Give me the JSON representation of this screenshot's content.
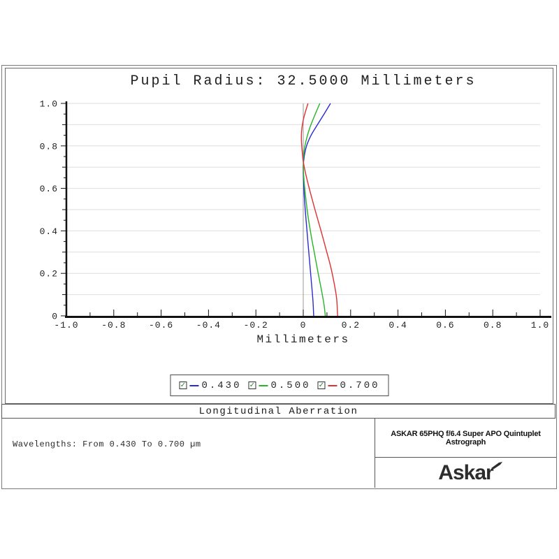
{
  "chart_data": {
    "type": "line",
    "title": "Pupil Radius: 32.5000 Millimeters",
    "xlabel": "Millimeters",
    "ylabel": "",
    "xlim": [
      -1.0,
      1.0
    ],
    "ylim": [
      0,
      1.0
    ],
    "x_tick_values": [
      -1.0,
      -0.8,
      -0.6,
      -0.4,
      -0.2,
      0,
      0.2,
      0.4,
      0.6,
      0.8,
      1.0
    ],
    "x_tick_labels": [
      "-1.0",
      "-0.8",
      "-0.6",
      "-0.4",
      "-0.2",
      "0",
      "0.2",
      "0.4",
      "0.6",
      "0.8",
      "1.0"
    ],
    "y_tick_values": [
      0,
      0.2,
      0.4,
      0.6,
      0.8,
      1.0
    ],
    "y_tick_labels": [
      "0",
      "0.2",
      "0.4",
      "0.6",
      "0.8",
      "1.0"
    ],
    "grid": {
      "horizontal_step": 0.1,
      "vertical_zero_line": true,
      "gridline_color": "#dedede",
      "zero_line_color": "#9a9a9a"
    },
    "legend_position": "bottom-center",
    "series": [
      {
        "name": "0.430",
        "color": "#2a2ad2",
        "checked": true,
        "points": [
          [
            0.115,
            1.0
          ],
          [
            0.088,
            0.95
          ],
          [
            0.06,
            0.9
          ],
          [
            0.033,
            0.85
          ],
          [
            0.014,
            0.8
          ],
          [
            0.004,
            0.75
          ],
          [
            0.0,
            0.7
          ],
          [
            0.001,
            0.64
          ],
          [
            0.004,
            0.57
          ],
          [
            0.009,
            0.49
          ],
          [
            0.015,
            0.41
          ],
          [
            0.021,
            0.33
          ],
          [
            0.028,
            0.24
          ],
          [
            0.035,
            0.15
          ],
          [
            0.041,
            0.07
          ],
          [
            0.044,
            0.0
          ]
        ]
      },
      {
        "name": "0.500",
        "color": "#27b427",
        "checked": true,
        "points": [
          [
            0.07,
            1.0
          ],
          [
            0.047,
            0.94
          ],
          [
            0.026,
            0.88
          ],
          [
            0.011,
            0.82
          ],
          [
            0.003,
            0.77
          ],
          [
            0.0,
            0.71
          ],
          [
            0.003,
            0.64
          ],
          [
            0.01,
            0.56
          ],
          [
            0.02,
            0.47
          ],
          [
            0.033,
            0.38
          ],
          [
            0.048,
            0.29
          ],
          [
            0.063,
            0.2
          ],
          [
            0.077,
            0.12
          ],
          [
            0.088,
            0.05
          ],
          [
            0.093,
            0.0
          ]
        ]
      },
      {
        "name": "0.700",
        "color": "#e13030",
        "checked": true,
        "points": [
          [
            0.02,
            1.0
          ],
          [
            0.004,
            0.94
          ],
          [
            -0.005,
            0.89
          ],
          [
            -0.008,
            0.84
          ],
          [
            -0.005,
            0.78
          ],
          [
            0.001,
            0.72
          ],
          [
            0.012,
            0.66
          ],
          [
            0.03,
            0.58
          ],
          [
            0.052,
            0.49
          ],
          [
            0.075,
            0.4
          ],
          [
            0.097,
            0.31
          ],
          [
            0.116,
            0.23
          ],
          [
            0.131,
            0.15
          ],
          [
            0.141,
            0.08
          ],
          [
            0.145,
            0.0
          ]
        ]
      }
    ]
  },
  "footer": {
    "section_title": "Longitudinal Aberration",
    "left_info": "Wavelengths: From 0.430 To 0.700 µm",
    "product_title": "ASKAR 65PHQ f/6.4 Super APO Quintuplet Astrograph",
    "brand": "Askar"
  }
}
